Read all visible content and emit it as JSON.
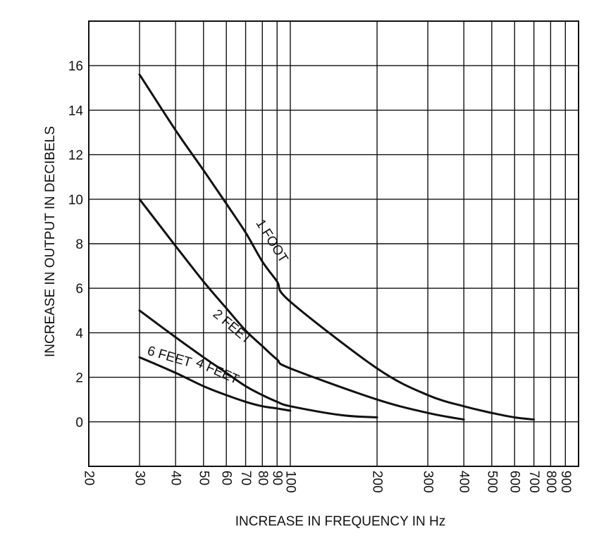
{
  "chart_data": {
    "type": "line",
    "title": "",
    "xlabel": "INCREASE IN FREQUENCY IN Hz",
    "ylabel": "INCREASE IN OUTPUT IN DECIBELS",
    "xscale": "log",
    "xlim": [
      20,
      1000
    ],
    "ylim": [
      -2,
      18
    ],
    "grid": true,
    "legend": "none",
    "x_ticks": [
      20,
      30,
      40,
      50,
      60,
      70,
      80,
      90,
      100,
      200,
      300,
      400,
      500,
      600,
      700,
      800,
      900
    ],
    "x_tick_labels": [
      "20",
      "30",
      "40",
      "50",
      "60",
      "70",
      "80",
      "90",
      "100",
      "200",
      "300",
      "400",
      "500",
      "600",
      "700",
      "800",
      "900"
    ],
    "y_ticks": [
      0,
      2,
      4,
      6,
      8,
      10,
      12,
      14,
      16
    ],
    "y_tick_labels": [
      "0",
      "2",
      "4",
      "6",
      "8",
      "10",
      "12",
      "14",
      "16"
    ],
    "series": [
      {
        "name": "1 FOOT",
        "x": [
          30,
          40,
          50,
          60,
          70,
          80,
          90,
          100,
          200,
          300,
          400,
          500,
          600,
          700
        ],
        "y": [
          15.6,
          13.1,
          11.3,
          9.8,
          8.5,
          7.2,
          6.3,
          5.4,
          2.4,
          1.2,
          0.7,
          0.4,
          0.2,
          0.1
        ]
      },
      {
        "name": "2 FEET",
        "x": [
          30,
          40,
          50,
          60,
          70,
          80,
          90,
          100,
          200,
          300,
          400
        ],
        "y": [
          10.0,
          7.9,
          6.3,
          5.1,
          4.1,
          3.4,
          2.8,
          2.4,
          1.0,
          0.4,
          0.1
        ]
      },
      {
        "name": "4 FEET",
        "x": [
          30,
          40,
          50,
          60,
          70,
          80,
          90,
          100,
          150,
          200
        ],
        "y": [
          5.0,
          3.8,
          2.9,
          2.2,
          1.6,
          1.2,
          0.9,
          0.7,
          0.3,
          0.2
        ]
      },
      {
        "name": "6 FEET",
        "x": [
          30,
          40,
          50,
          60,
          70,
          80,
          90,
          100
        ],
        "y": [
          2.9,
          2.2,
          1.6,
          1.2,
          0.9,
          0.7,
          0.6,
          0.5
        ]
      }
    ]
  }
}
